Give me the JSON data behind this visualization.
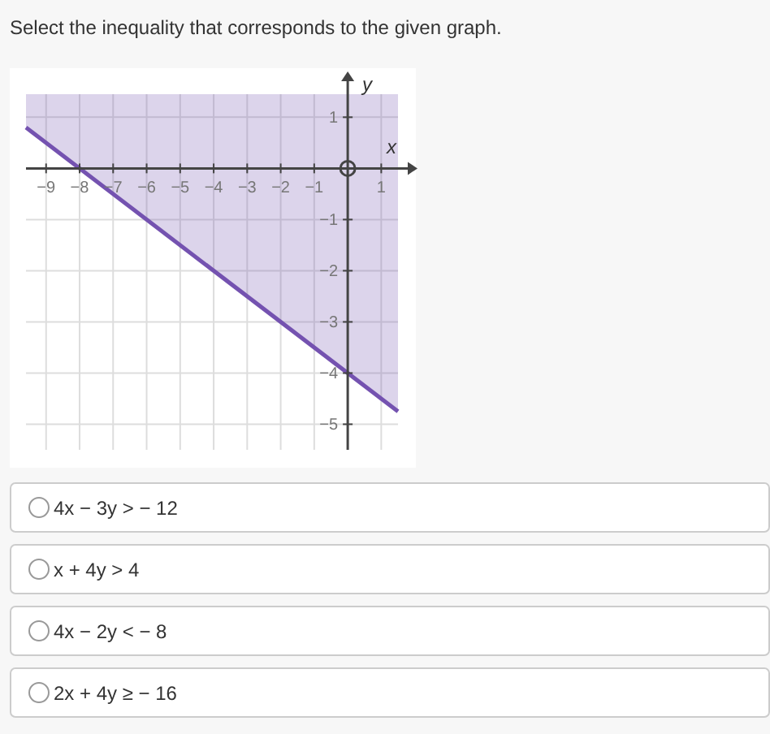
{
  "chart_data": {
    "type": "line",
    "title": "Select the inequality that corresponds to the given graph.",
    "xlabel": "x",
    "ylabel": "y",
    "series": [
      {
        "color": "#7452b0",
        "x": [
          -9.6,
          1.5
        ],
        "values": [
          0.8,
          -4.75
        ],
        "lower": [
          0.8,
          -4.75
        ],
        "upper": [
          1.45,
          1.45
        ]
      }
    ],
    "xlim": [
      -9.6,
      1.5
    ],
    "ylim": [
      -5.5,
      1.45
    ],
    "xticks": [
      {
        "value": -9,
        "label": "−9"
      },
      {
        "value": -8,
        "label": "−8"
      },
      {
        "value": -7,
        "label": "−7"
      },
      {
        "value": -6,
        "label": "−6"
      },
      {
        "value": -5,
        "label": "−5"
      },
      {
        "value": -4,
        "label": "−4"
      },
      {
        "value": -3,
        "label": "−3"
      },
      {
        "value": -2,
        "label": "−2"
      },
      {
        "value": -1,
        "label": "−1"
      },
      1
    ],
    "yticks": [
      1,
      {
        "value": -1,
        "label": "−1"
      },
      {
        "value": -2,
        "label": "−2"
      },
      {
        "value": -3,
        "label": "−3"
      },
      {
        "value": -4,
        "label": "−4"
      },
      {
        "value": -5,
        "label": "−5"
      }
    ],
    "grid": true,
    "marker": "none",
    "line_style": "solid",
    "annotations": [
      "4x − 3y > − 12",
      "x + 4y > 4",
      "4x − 2y < − 8",
      "2x + 4y ≥ − 16"
    ]
  }
}
